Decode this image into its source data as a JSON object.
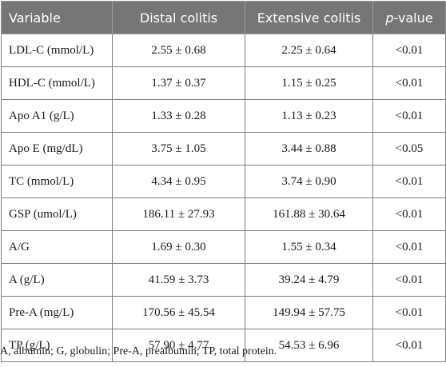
{
  "table": {
    "headers": {
      "variable": "Variable",
      "distal": "Distal colitis",
      "extensive": "Extensive colitis",
      "p_italic": "p",
      "p_rest": "-value"
    },
    "rows": [
      {
        "variable": "LDL-C (mmol/L)",
        "distal": "2.55 ± 0.68",
        "extensive": "2.25 ± 0.64",
        "p": "<0.01"
      },
      {
        "variable": "HDL-C (mmol/L)",
        "distal": "1.37 ± 0.37",
        "extensive": "1.15 ± 0.25",
        "p": "<0.01"
      },
      {
        "variable": "Apo A1 (g/L)",
        "distal": "1.33 ± 0.28",
        "extensive": "1.13 ± 0.23",
        "p": "<0.01"
      },
      {
        "variable": "Apo E (mg/dL)",
        "distal": "3.75 ± 1.05",
        "extensive": "3.44 ± 0.88",
        "p": "<0.05"
      },
      {
        "variable": "TC (mmol/L)",
        "distal": "4.34 ± 0.95",
        "extensive": "3.74 ± 0.90",
        "p": "<0.01"
      },
      {
        "variable": "GSP (umol/L)",
        "distal": "186.11 ± 27.93",
        "extensive": "161.88 ± 30.64",
        "p": "<0.01"
      },
      {
        "variable": "A/G",
        "distal": "1.69 ± 0.30",
        "extensive": "1.55 ± 0.34",
        "p": "<0.01"
      },
      {
        "variable": "A (g/L)",
        "distal": "41.59 ± 3.73",
        "extensive": "39.24 ± 4.79",
        "p": "<0.01"
      },
      {
        "variable": "Pre-A (mg/L)",
        "distal": "170.56 ± 45.54",
        "extensive": "149.94 ± 57.75",
        "p": "<0.01"
      },
      {
        "variable": "TP (g/L)",
        "distal": "57.90 ± 4.77",
        "extensive": "54.53 ± 6.96",
        "p": "<0.01"
      }
    ]
  },
  "footnote": "A, albumin; G, globulin; Pre-A, prealbumin; TP, total protein.",
  "colors": {
    "header_bg": "#767676",
    "header_text": "#ffffff",
    "border": "#7f7f7f",
    "body_text": "#1a1a1a"
  }
}
